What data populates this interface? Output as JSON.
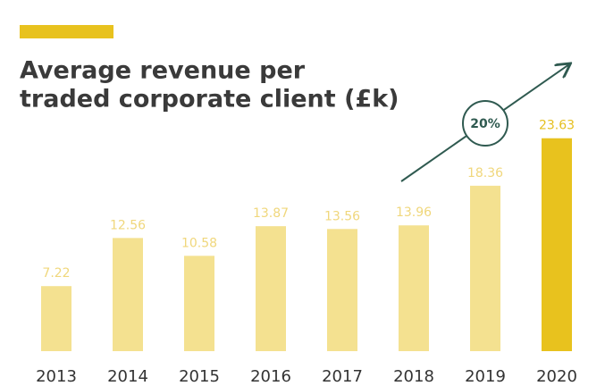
{
  "chart_data": {
    "type": "bar",
    "title": [
      "Average revenue per",
      "traded corporate client (£k)"
    ],
    "categories": [
      "2013",
      "2014",
      "2015",
      "2016",
      "2017",
      "2018",
      "2019",
      "2020"
    ],
    "values": [
      7.22,
      12.56,
      10.58,
      13.87,
      13.56,
      13.96,
      18.36,
      23.63
    ],
    "value_labels": [
      "7.22",
      "12.56",
      "10.58",
      "13.87",
      "13.56",
      "13.96",
      "18.36",
      "23.63"
    ],
    "colors": [
      "#f4e190",
      "#f4e190",
      "#f4e190",
      "#f4e190",
      "#f4e190",
      "#f4e190",
      "#f4e190",
      "#e8c21e"
    ],
    "label_colors": [
      "#f0d77c",
      "#f0d77c",
      "#f0d77c",
      "#f0d77c",
      "#f0d77c",
      "#f0d77c",
      "#f0d77c",
      "#e5bf1e"
    ],
    "ylim": [
      0,
      24
    ],
    "annotation": "20%"
  }
}
